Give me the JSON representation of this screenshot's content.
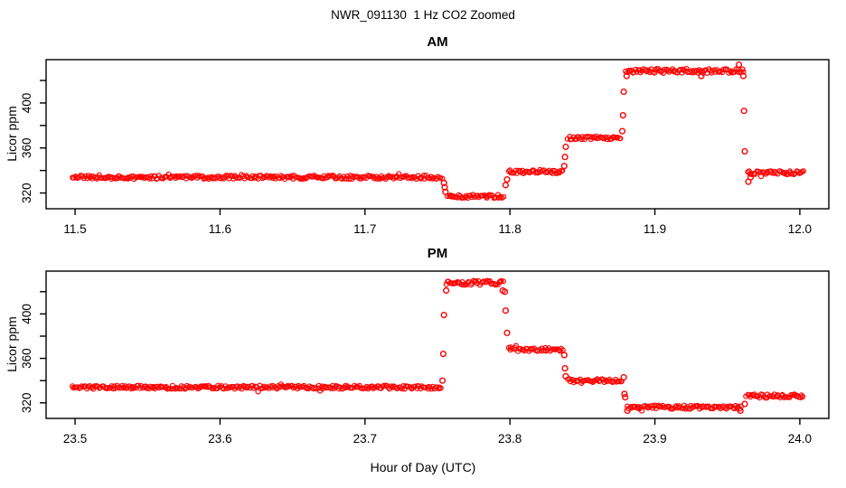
{
  "title": "NWR_091130  1 Hz CO2 Zoomed",
  "xlabel": "Hour of Day (UTC)",
  "ylabel": "Licor ppm",
  "colors": {
    "points": "#FF0000",
    "axis": "#000000",
    "background": "#FFFFFF"
  },
  "chart_data": [
    {
      "type": "scatter",
      "panel": "AM",
      "title": "AM",
      "ylabel": "Licor ppm",
      "marker": "open-circle",
      "grid": false,
      "legend": "none",
      "xlim": [
        11.48,
        12.02
      ],
      "ylim": [
        306,
        438.5
      ],
      "xticks": [
        11.5,
        11.6,
        11.7,
        11.8,
        11.9,
        12.0
      ],
      "yticks_all": [
        320,
        340,
        360,
        380,
        400,
        420
      ],
      "yticks_labeled": [
        320,
        360,
        400
      ],
      "segments": [
        {
          "x0": 11.498,
          "x1": 11.754,
          "y": 334,
          "noise": 1.6
        },
        {
          "x0": 11.757,
          "x1": 11.796,
          "y": 317,
          "noise": 1.6
        },
        {
          "x0": 11.799,
          "x1": 11.837,
          "y": 339,
          "noise": 1.6
        },
        {
          "x0": 11.84,
          "x1": 11.877,
          "y": 369,
          "noise": 1.6
        },
        {
          "x0": 11.88,
          "x1": 11.962,
          "y": 428.5,
          "noise": 2.0
        },
        {
          "x0": 11.964,
          "x1": 12.003,
          "y": 338,
          "noise": 1.6
        }
      ],
      "points": [
        [
          11.7545,
          329
        ],
        [
          11.755,
          325
        ],
        [
          11.7555,
          321
        ],
        [
          11.797,
          327
        ],
        [
          11.798,
          332
        ],
        [
          11.8375,
          344
        ],
        [
          11.838,
          352
        ],
        [
          11.8385,
          361
        ],
        [
          11.8775,
          375
        ],
        [
          11.878,
          389
        ],
        [
          11.8785,
          410
        ],
        [
          11.8805,
          424
        ],
        [
          11.932,
          424
        ],
        [
          11.958,
          434
        ],
        [
          11.961,
          424
        ],
        [
          11.9615,
          393
        ],
        [
          11.962,
          357
        ],
        [
          11.9645,
          330
        ],
        [
          11.966,
          334
        ]
      ]
    },
    {
      "type": "scatter",
      "panel": "PM",
      "title": "PM",
      "ylabel": "Licor ppm",
      "marker": "open-circle",
      "grid": false,
      "legend": "none",
      "xlim": [
        23.48,
        24.02
      ],
      "ylim": [
        306,
        438.5
      ],
      "xticks": [
        23.5,
        23.6,
        23.7,
        23.8,
        23.9,
        24.0
      ],
      "yticks_all": [
        320,
        340,
        360,
        380,
        400,
        420
      ],
      "yticks_labeled": [
        320,
        360,
        400
      ],
      "segments": [
        {
          "x0": 23.498,
          "x1": 23.753,
          "y": 334,
          "noise": 1.6
        },
        {
          "x0": 23.756,
          "x1": 23.796,
          "y": 428,
          "noise": 2.0
        },
        {
          "x0": 23.799,
          "x1": 23.837,
          "y": 368,
          "noise": 1.6
        },
        {
          "x0": 23.84,
          "x1": 23.878,
          "y": 340,
          "noise": 1.6
        },
        {
          "x0": 23.881,
          "x1": 23.96,
          "y": 316,
          "noise": 1.6
        },
        {
          "x0": 23.963,
          "x1": 24.003,
          "y": 326,
          "noise": 1.6
        }
      ],
      "points": [
        [
          23.7535,
          340
        ],
        [
          23.754,
          364
        ],
        [
          23.7545,
          399
        ],
        [
          23.756,
          421
        ],
        [
          23.795,
          421
        ],
        [
          23.7965,
          420
        ],
        [
          23.797,
          403
        ],
        [
          23.798,
          383
        ],
        [
          23.8375,
          363
        ],
        [
          23.838,
          351
        ],
        [
          23.8385,
          344
        ],
        [
          23.8785,
          343
        ],
        [
          23.879,
          328
        ],
        [
          23.8795,
          325
        ],
        [
          23.881,
          313
        ],
        [
          23.959,
          313
        ],
        [
          23.962,
          319
        ]
      ]
    }
  ]
}
